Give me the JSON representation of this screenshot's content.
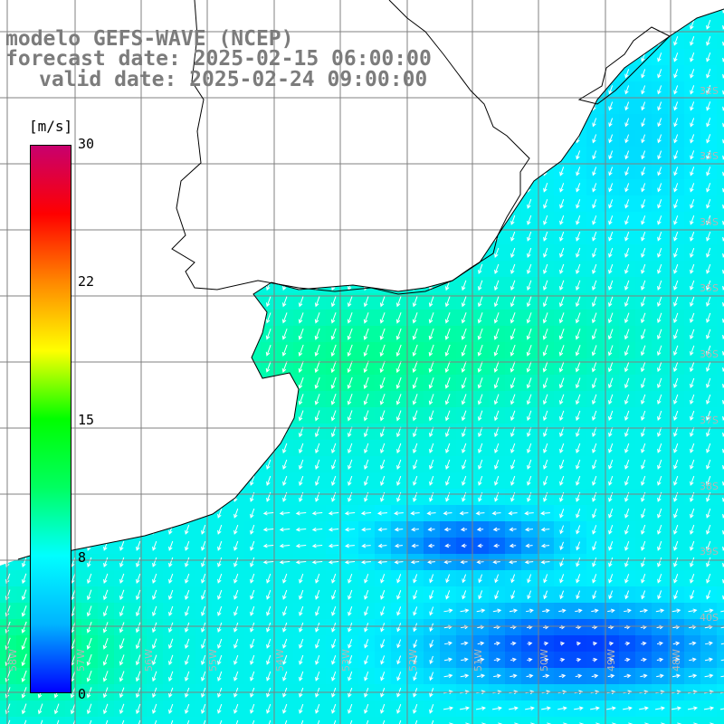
{
  "header": {
    "model": "modelo GEFS-WAVE (NCEP)",
    "forecast": "forecast date: 2025-02-15 06:00:00",
    "valid": "valid date: 2025-02-24 09:00:00"
  },
  "colorbar": {
    "unit": "[m/s]",
    "ticks": [
      "30",
      "22",
      "15",
      "8",
      "0"
    ],
    "colors": [
      "#0000ff",
      "#00b4ff",
      "#00ffff",
      "#00ff60",
      "#00ff00",
      "#ffff00",
      "#ff8800",
      "#ff0000",
      "#c8006e"
    ]
  },
  "lat_labels": [
    "32S",
    "33S",
    "34S",
    "35S",
    "36S",
    "37S",
    "38S",
    "39S",
    "40S"
  ],
  "lon_labels": [
    "58W",
    "57W",
    "56W",
    "55W",
    "54W",
    "53W",
    "52W",
    "51W",
    "50W",
    "49W",
    "48W"
  ],
  "colors": {
    "land": "#ffffff",
    "coast": "#000000",
    "grid": "#808080",
    "arrow": "#ffffff"
  }
}
